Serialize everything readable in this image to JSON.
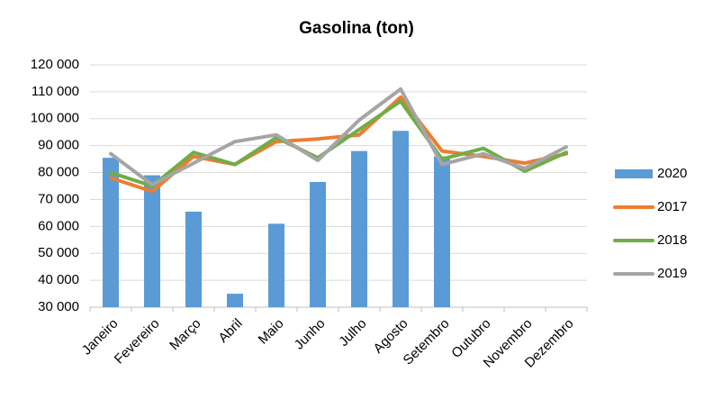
{
  "chart_data": {
    "type": "bar",
    "title": "Gasolina (ton)",
    "categories": [
      "Janeiro",
      "Fevereiro",
      "Março",
      "Abril",
      "Maio",
      "Junho",
      "Julho",
      "Agosto",
      "Setembro",
      "Outubro",
      "Novembro",
      "Dezembro"
    ],
    "series": [
      {
        "name": "2020",
        "type": "bar",
        "color": "#5b9bd5",
        "values": [
          85500,
          79000,
          65500,
          35000,
          61000,
          76500,
          88000,
          95500,
          86000,
          null,
          null,
          null
        ]
      },
      {
        "name": "2017",
        "type": "line",
        "color": "#ed7d31",
        "values": [
          78000,
          73000,
          86000,
          83000,
          91500,
          92500,
          94000,
          108000,
          88000,
          86000,
          83500,
          87000
        ]
      },
      {
        "name": "2018",
        "type": "line",
        "color": "#70ad47",
        "values": [
          80000,
          75000,
          87500,
          83000,
          93000,
          85500,
          96000,
          106500,
          85000,
          89000,
          80500,
          87500
        ]
      },
      {
        "name": "2019",
        "type": "line",
        "color": "#a5a5a5",
        "values": [
          87000,
          75500,
          83500,
          91500,
          94000,
          84500,
          99500,
          111000,
          83000,
          87000,
          81500,
          89500
        ]
      }
    ],
    "ylim": [
      30000,
      120000
    ],
    "yticks": [
      {
        "value": 30000,
        "label": "30 000"
      },
      {
        "value": 40000,
        "label": "40 000"
      },
      {
        "value": 50000,
        "label": "50 000"
      },
      {
        "value": 60000,
        "label": "60 000"
      },
      {
        "value": 70000,
        "label": "70 000"
      },
      {
        "value": 80000,
        "label": "80 000"
      },
      {
        "value": 90000,
        "label": "90 000"
      },
      {
        "value": 100000,
        "label": "100 000"
      },
      {
        "value": 110000,
        "label": "110 000"
      },
      {
        "value": 120000,
        "label": "120 000"
      }
    ],
    "grid": true,
    "legend": "right"
  }
}
